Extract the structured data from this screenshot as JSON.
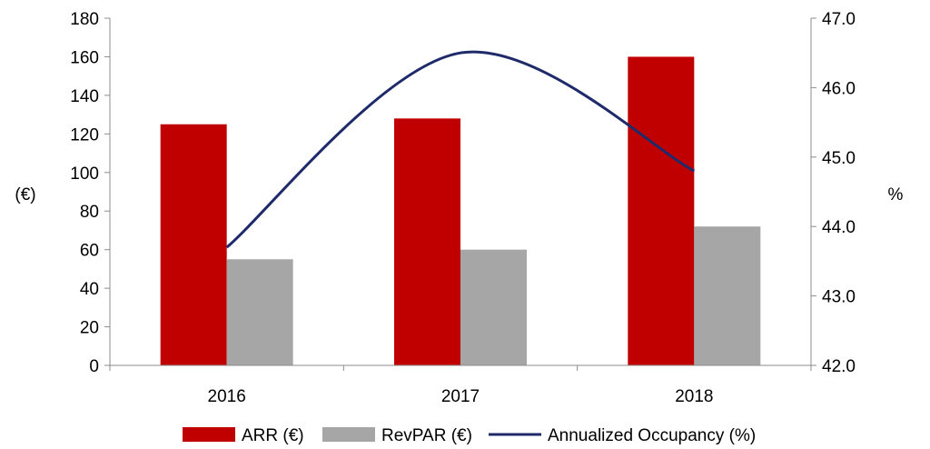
{
  "chart_data": {
    "type": "bar",
    "title": "",
    "categories": [
      "2016",
      "2017",
      "2018"
    ],
    "series": [
      {
        "name": "ARR (€)",
        "kind": "bar",
        "axis": "left",
        "color": "#C00000",
        "values": [
          125,
          128,
          160
        ]
      },
      {
        "name": "RevPAR (€)",
        "kind": "bar",
        "axis": "left",
        "color": "#A6A6A6",
        "values": [
          55,
          60,
          72
        ]
      },
      {
        "name": "Annualized Occupancy (%)",
        "kind": "line",
        "axis": "right",
        "color": "#1F2A6B",
        "values": [
          43.7,
          46.5,
          44.8
        ]
      }
    ],
    "ylabel": "(€)",
    "y2label": "%",
    "ylim": [
      0,
      180
    ],
    "y2lim": [
      42.0,
      47.0
    ],
    "yticks": [
      "0",
      "20",
      "40",
      "60",
      "80",
      "100",
      "120",
      "140",
      "160",
      "180"
    ],
    "y2ticks": [
      "42.0",
      "43.0",
      "44.0",
      "45.0",
      "46.0",
      "47.0"
    ],
    "grid": false,
    "legend": "bottom"
  }
}
